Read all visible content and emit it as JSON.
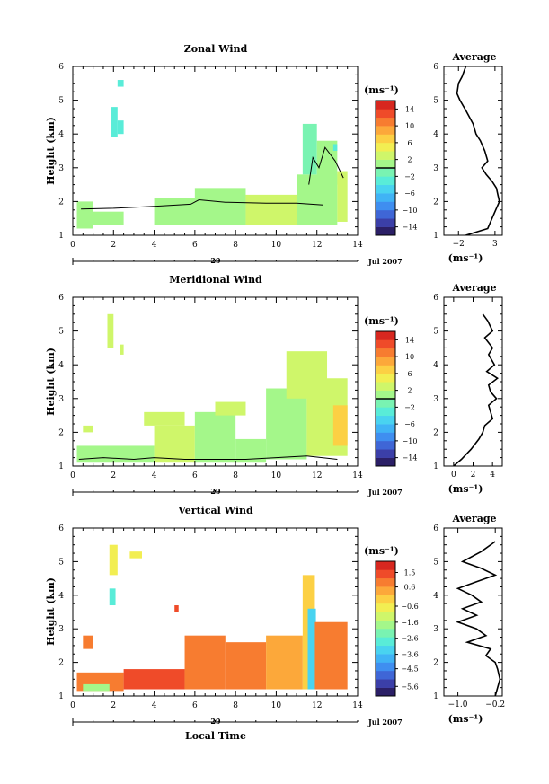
{
  "figure": {
    "xaxis_label": "Local Time",
    "date_day": "29",
    "date_month_year": "Jul 2007",
    "unit_label": "(ms⁻¹)",
    "avg_title": "Average",
    "ylabel": "Height (km)"
  },
  "chart_data": [
    {
      "type": "heatmap",
      "title": "Zonal Wind",
      "xlabel": "",
      "ylabel": "Height (km)",
      "xlim": [
        0,
        14
      ],
      "ylim": [
        1,
        6
      ],
      "xticks": [
        0,
        2,
        4,
        6,
        8,
        10,
        12,
        14
      ],
      "yticks": [
        1,
        2,
        3,
        4,
        5,
        6
      ],
      "colorbar": {
        "unit": "(ms⁻¹)",
        "range": [
          -16,
          16
        ],
        "ticks": [
          14,
          10,
          6,
          2,
          -2,
          -6,
          -10,
          -14
        ],
        "zero_line": 0
      },
      "patches": [
        {
          "x0": 2.2,
          "x1": 2.5,
          "y0": 4.0,
          "y1": 4.4,
          "v": -3.0
        },
        {
          "x0": 1.9,
          "x1": 2.2,
          "y0": 3.9,
          "y1": 4.8,
          "v": -2.5
        },
        {
          "x0": 2.2,
          "x1": 2.5,
          "y0": 5.4,
          "y1": 5.6,
          "v": -4.0
        },
        {
          "x0": 0.2,
          "x1": 1.0,
          "y0": 1.2,
          "y1": 2.0,
          "v": 1.0
        },
        {
          "x0": 1.0,
          "x1": 2.5,
          "y0": 1.3,
          "y1": 1.7,
          "v": 0.5
        },
        {
          "x0": 4.0,
          "x1": 6.5,
          "y0": 1.3,
          "y1": 2.1,
          "v": 1.5
        },
        {
          "x0": 6.0,
          "x1": 8.5,
          "y0": 1.3,
          "y1": 2.4,
          "v": 1.0
        },
        {
          "x0": 8.5,
          "x1": 11.0,
          "y0": 1.3,
          "y1": 2.2,
          "v": 2.5
        },
        {
          "x0": 11.0,
          "x1": 13.0,
          "y0": 1.3,
          "y1": 2.8,
          "v": 1.0
        },
        {
          "x0": 11.3,
          "x1": 12.0,
          "y0": 2.8,
          "y1": 4.3,
          "v": -1.5
        },
        {
          "x0": 12.0,
          "x1": 13.0,
          "y0": 2.5,
          "y1": 3.8,
          "v": 1.5
        },
        {
          "x0": 13.0,
          "x1": 13.5,
          "y0": 1.4,
          "y1": 2.9,
          "v": 3.5
        },
        {
          "x0": 12.8,
          "x1": 13.0,
          "y0": 3.5,
          "y1": 3.7,
          "v": -3.0
        }
      ],
      "zero_lines": [
        [
          [
            0.4,
            1.78
          ],
          [
            2.0,
            1.8
          ],
          [
            4.0,
            1.86
          ],
          [
            5.8,
            1.92
          ],
          [
            6.2,
            2.05
          ],
          [
            7.5,
            1.98
          ],
          [
            9.5,
            1.95
          ],
          [
            11.0,
            1.95
          ],
          [
            12.3,
            1.9
          ]
        ],
        [
          [
            11.6,
            2.5
          ],
          [
            11.8,
            3.3
          ],
          [
            12.1,
            3.0
          ],
          [
            12.4,
            3.6
          ],
          [
            12.9,
            3.2
          ],
          [
            13.3,
            2.7
          ]
        ]
      ],
      "average": {
        "xlim": [
          -4,
          4
        ],
        "xticks": [
          -2,
          3
        ],
        "xlabel": "(ms⁻¹)",
        "x": [
          -1.0,
          -1.5,
          -2.0,
          -2.2,
          -1.8,
          -1.0,
          0.0,
          0.4,
          1.0,
          1.6,
          2.0,
          1.2,
          1.8,
          2.6,
          3.2,
          3.4,
          3.6,
          3.2,
          2.6,
          2.0,
          -1.0
        ],
        "y": [
          6.0,
          5.7,
          5.5,
          5.2,
          5.0,
          4.7,
          4.3,
          4.0,
          3.8,
          3.5,
          3.2,
          3.0,
          2.8,
          2.6,
          2.4,
          2.2,
          2.0,
          1.8,
          1.5,
          1.2,
          1.0
        ]
      }
    },
    {
      "type": "heatmap",
      "title": "Meridional Wind",
      "xlabel": "",
      "ylabel": "Height (km)",
      "xlim": [
        0,
        14
      ],
      "ylim": [
        1,
        6
      ],
      "xticks": [
        0,
        2,
        4,
        6,
        8,
        10,
        12,
        14
      ],
      "yticks": [
        1,
        2,
        3,
        4,
        5,
        6
      ],
      "colorbar": {
        "unit": "(ms⁻¹)",
        "range": [
          -16,
          16
        ],
        "ticks": [
          14,
          10,
          6,
          2,
          -2,
          -6,
          -10,
          -14
        ],
        "zero_line": 0
      },
      "patches": [
        {
          "x0": 1.7,
          "x1": 2.0,
          "y0": 4.5,
          "y1": 5.5,
          "v": 3.0
        },
        {
          "x0": 2.3,
          "x1": 2.5,
          "y0": 4.3,
          "y1": 4.6,
          "v": 2.0
        },
        {
          "x0": 0.5,
          "x1": 1.0,
          "y0": 2.0,
          "y1": 2.2,
          "v": 3.0
        },
        {
          "x0": 0.2,
          "x1": 4.0,
          "y0": 1.1,
          "y1": 1.6,
          "v": 1.5
        },
        {
          "x0": 4.0,
          "x1": 6.0,
          "y0": 1.1,
          "y1": 2.2,
          "v": 2.0
        },
        {
          "x0": 6.0,
          "x1": 8.0,
          "y0": 1.1,
          "y1": 2.6,
          "v": 1.0
        },
        {
          "x0": 8.0,
          "x1": 9.5,
          "y0": 1.1,
          "y1": 1.8,
          "v": 1.5
        },
        {
          "x0": 9.5,
          "x1": 11.5,
          "y0": 1.2,
          "y1": 3.3,
          "v": 1.0
        },
        {
          "x0": 10.5,
          "x1": 12.5,
          "y0": 3.0,
          "y1": 4.4,
          "v": 3.5
        },
        {
          "x0": 11.5,
          "x1": 13.5,
          "y0": 1.3,
          "y1": 3.6,
          "v": 2.5
        },
        {
          "x0": 12.8,
          "x1": 13.5,
          "y0": 1.6,
          "y1": 2.8,
          "v": 6.5
        },
        {
          "x0": 3.5,
          "x1": 5.5,
          "y0": 2.2,
          "y1": 2.6,
          "v": 3.0
        },
        {
          "x0": 7.0,
          "x1": 8.5,
          "y0": 2.5,
          "y1": 2.9,
          "v": 2.5
        }
      ],
      "zero_lines": [
        [
          [
            0.3,
            1.2
          ],
          [
            1.5,
            1.25
          ],
          [
            3.0,
            1.2
          ],
          [
            4.0,
            1.25
          ],
          [
            5.5,
            1.2
          ],
          [
            7.0,
            1.2
          ],
          [
            8.5,
            1.2
          ],
          [
            10.0,
            1.25
          ],
          [
            11.5,
            1.3
          ],
          [
            13.0,
            1.2
          ]
        ]
      ],
      "average": {
        "xlim": [
          -1,
          5
        ],
        "xticks": [
          0,
          2,
          4
        ],
        "xlabel": "(ms⁻¹)",
        "x": [
          3.0,
          3.5,
          4.0,
          3.2,
          4.0,
          3.6,
          4.2,
          3.4,
          4.5,
          3.6,
          3.8,
          4.4,
          3.6,
          3.8,
          4.0,
          3.2,
          3.0,
          2.6,
          1.8,
          0.8,
          0.0
        ],
        "y": [
          5.5,
          5.3,
          5.0,
          4.8,
          4.5,
          4.3,
          4.0,
          3.8,
          3.6,
          3.4,
          3.2,
          3.0,
          2.8,
          2.6,
          2.4,
          2.2,
          2.0,
          1.8,
          1.5,
          1.2,
          1.0
        ]
      }
    },
    {
      "type": "heatmap",
      "title": "Vertical Wind",
      "xlabel": "Local Time",
      "ylabel": "Height (km)",
      "xlim": [
        0,
        14
      ],
      "ylim": [
        1,
        6
      ],
      "xticks": [
        0,
        2,
        4,
        6,
        8,
        10,
        12,
        14
      ],
      "yticks": [
        1,
        2,
        3,
        4,
        5,
        6
      ],
      "colorbar": {
        "unit": "(ms⁻¹)",
        "range": [
          -6.2,
          2.2
        ],
        "ticks": [
          1.5,
          0.6,
          -0.6,
          -1.6,
          -2.6,
          -3.6,
          -4.5,
          -5.6
        ],
        "zero_line": null
      },
      "patches": [
        {
          "x0": 1.8,
          "x1": 2.2,
          "y0": 4.6,
          "y1": 5.5,
          "v": -0.8
        },
        {
          "x0": 1.8,
          "x1": 2.1,
          "y0": 3.7,
          "y1": 4.2,
          "v": -3.0
        },
        {
          "x0": 2.8,
          "x1": 3.4,
          "y0": 5.1,
          "y1": 5.3,
          "v": -0.5
        },
        {
          "x0": 0.5,
          "x1": 1.0,
          "y0": 2.4,
          "y1": 2.8,
          "v": 1.0
        },
        {
          "x0": 0.2,
          "x1": 2.5,
          "y0": 1.15,
          "y1": 1.7,
          "v": 1.0
        },
        {
          "x0": 0.5,
          "x1": 1.8,
          "y0": 1.15,
          "y1": 1.35,
          "v": -2.0
        },
        {
          "x0": 2.5,
          "x1": 5.5,
          "y0": 1.2,
          "y1": 1.8,
          "v": 1.2
        },
        {
          "x0": 5.5,
          "x1": 7.5,
          "y0": 1.2,
          "y1": 2.8,
          "v": 0.8
        },
        {
          "x0": 7.5,
          "x1": 9.5,
          "y0": 1.2,
          "y1": 2.6,
          "v": 1.0
        },
        {
          "x0": 9.5,
          "x1": 11.3,
          "y0": 1.2,
          "y1": 2.8,
          "v": 0.6
        },
        {
          "x0": 11.3,
          "x1": 11.9,
          "y0": 1.2,
          "y1": 4.6,
          "v": -0.2
        },
        {
          "x0": 11.55,
          "x1": 11.95,
          "y0": 1.2,
          "y1": 3.6,
          "v": -3.2
        },
        {
          "x0": 11.9,
          "x1": 13.5,
          "y0": 1.2,
          "y1": 3.2,
          "v": 1.0
        },
        {
          "x0": 5.0,
          "x1": 5.2,
          "y0": 3.5,
          "y1": 3.7,
          "v": 1.5
        }
      ],
      "zero_lines": [],
      "average": {
        "xlim": [
          -1.3,
          -0.05
        ],
        "xticks": [
          -1.0,
          -0.2
        ],
        "xlabel": "(ms⁻¹)",
        "x": [
          -0.2,
          -0.5,
          -0.9,
          -0.5,
          -0.2,
          -0.6,
          -1.0,
          -0.7,
          -0.5,
          -0.9,
          -0.6,
          -1.0,
          -0.6,
          -0.4,
          -0.8,
          -0.3,
          -0.4,
          -0.2,
          -0.15,
          -0.1,
          -0.2
        ],
        "y": [
          5.6,
          5.3,
          5.0,
          4.8,
          4.6,
          4.4,
          4.2,
          4.0,
          3.8,
          3.6,
          3.4,
          3.2,
          3.0,
          2.8,
          2.6,
          2.4,
          2.2,
          2.0,
          1.8,
          1.5,
          1.0
        ]
      }
    }
  ]
}
